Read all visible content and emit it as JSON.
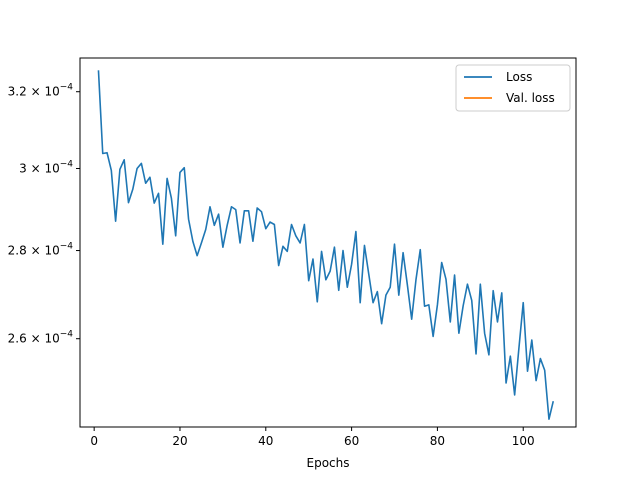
{
  "chart_data": {
    "type": "line",
    "xlabel": "Epochs",
    "ylabel": "",
    "yscale": "log",
    "xlim": [
      -3.3,
      112.3
    ],
    "ylim": [
      0.0002414,
      0.0003292
    ],
    "xticks": [
      0,
      20,
      40,
      60,
      80,
      100
    ],
    "xtick_labels": [
      "0",
      "20",
      "40",
      "60",
      "80",
      "100"
    ],
    "yticks": [
      {
        "value": 0.00032,
        "mantissa": "3.2",
        "exp": "−4"
      },
      {
        "value": 0.0003,
        "mantissa": "3",
        "exp": "−4"
      },
      {
        "value": 0.00028,
        "mantissa": "2.8",
        "exp": "−4"
      },
      {
        "value": 0.00026,
        "mantissa": "2.6",
        "exp": "−4"
      }
    ],
    "tick_base": "10",
    "legend_position": "top-right",
    "grid": false,
    "series": [
      {
        "name": "Loss",
        "color": "#1f77b4",
        "x": [
          1,
          2,
          3,
          4,
          5,
          6,
          7,
          8,
          9,
          10,
          11,
          12,
          13,
          14,
          15,
          16,
          17,
          18,
          19,
          20,
          21,
          22,
          23,
          24,
          25,
          26,
          27,
          28,
          29,
          30,
          31,
          32,
          33,
          34,
          35,
          36,
          37,
          38,
          39,
          40,
          41,
          42,
          43,
          44,
          45,
          46,
          47,
          48,
          49,
          50,
          51,
          52,
          53,
          54,
          55,
          56,
          57,
          58,
          59,
          60,
          61,
          62,
          63,
          64,
          65,
          66,
          67,
          68,
          69,
          70,
          71,
          72,
          73,
          74,
          75,
          76,
          77,
          78,
          79,
          80,
          81,
          82,
          83,
          84,
          85,
          86,
          87,
          88,
          89,
          90,
          91,
          92,
          93,
          94,
          95,
          96,
          97,
          98,
          99,
          100,
          101,
          102,
          103,
          104,
          105,
          106,
          107
        ],
        "y": [
          0.0003258,
          0.0003038,
          0.000304,
          0.0002995,
          0.000287,
          0.0002998,
          0.0003022,
          0.0002915,
          0.0002948,
          0.0003,
          0.0003013,
          0.0002963,
          0.0002978,
          0.0002914,
          0.0002938,
          0.0002815,
          0.0002975,
          0.0002926,
          0.0002835,
          0.000299,
          0.0003002,
          0.0002875,
          0.0002822,
          0.0002788,
          0.0002818,
          0.000285,
          0.0002905,
          0.000286,
          0.0002887,
          0.0002808,
          0.000286,
          0.0002905,
          0.0002898,
          0.0002818,
          0.0002895,
          0.0002895,
          0.0002822,
          0.0002902,
          0.0002893,
          0.0002852,
          0.0002868,
          0.0002862,
          0.0002765,
          0.000281,
          0.0002798,
          0.0002862,
          0.0002835,
          0.0002818,
          0.0002862,
          0.000273,
          0.000278,
          0.0002682,
          0.0002798,
          0.0002732,
          0.0002752,
          0.0002808,
          0.0002708,
          0.00028,
          0.0002715,
          0.0002768,
          0.0002845,
          0.000268,
          0.0002812,
          0.0002745,
          0.000268,
          0.0002705,
          0.0002633,
          0.0002697,
          0.0002715,
          0.0002815,
          0.0002697,
          0.0002795,
          0.000272,
          0.0002643,
          0.0002732,
          0.0002802,
          0.0002672,
          0.0002675,
          0.0002605,
          0.0002675,
          0.0002772,
          0.0002733,
          0.0002637,
          0.0002743,
          0.0002612,
          0.0002673,
          0.0002722,
          0.0002685,
          0.0002567,
          0.0002722,
          0.0002612,
          0.0002565,
          0.0002707,
          0.0002637,
          0.0002702,
          0.0002505,
          0.0002562,
          0.000248,
          0.000258,
          0.000268,
          0.000253,
          0.0002597,
          0.000251,
          0.0002557,
          0.0002532,
          0.000243,
          0.0002467
        ]
      },
      {
        "name": "Val. loss",
        "color": "#ff7f0e",
        "x": [],
        "y": []
      }
    ]
  }
}
